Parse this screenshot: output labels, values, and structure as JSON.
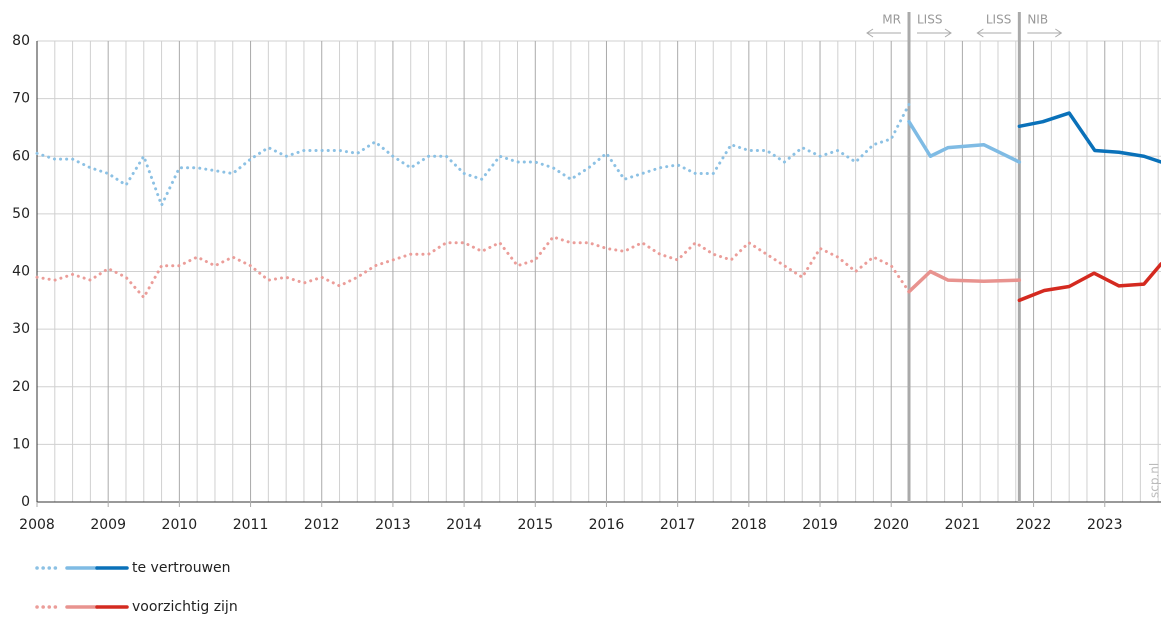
{
  "chart_data": {
    "type": "line",
    "xlim": [
      2008,
      2023.79
    ],
    "xticks": [
      2008,
      2009,
      2010,
      2011,
      2012,
      2013,
      2014,
      2015,
      2016,
      2017,
      2018,
      2019,
      2020,
      2021,
      2022,
      2023
    ],
    "xgrid": [
      2008.25,
      2008.5,
      2008.75,
      2009.25,
      2009.5,
      2009.75,
      2010.25,
      2010.5,
      2010.75,
      2011.25,
      2011.5,
      2011.75,
      2012.25,
      2012.5,
      2012.75,
      2013.25,
      2013.5,
      2013.75,
      2014.25,
      2014.5,
      2014.75,
      2015.25,
      2015.5,
      2015.75,
      2016.25,
      2016.5,
      2016.75,
      2017.25,
      2017.5,
      2017.75,
      2018.25,
      2018.5,
      2018.75,
      2019.25,
      2019.5,
      2019.75,
      2020.25,
      2020.5,
      2020.75,
      2021.25,
      2021.5,
      2021.75,
      2022.25,
      2022.5,
      2022.75,
      2023.25,
      2023.5,
      2023.75
    ],
    "ylim": [
      0,
      80
    ],
    "yticks": [
      0,
      10,
      20,
      30,
      40,
      50,
      60,
      70,
      80
    ],
    "grid": true,
    "series": [
      {
        "name": "te vertrouwen",
        "pieces": [
          {
            "style": "dotted",
            "color": "#8cc1e4",
            "x": [
              2008,
              2008.25,
              2008.5,
              2008.75,
              2009,
              2009.25,
              2009.5,
              2009.75,
              2010,
              2010.25,
              2010.5,
              2010.75,
              2011,
              2011.25,
              2011.5,
              2011.75,
              2012,
              2012.25,
              2012.5,
              2012.75,
              2013,
              2013.25,
              2013.5,
              2013.75,
              2014,
              2014.25,
              2014.5,
              2014.75,
              2015,
              2015.25,
              2015.5,
              2015.75,
              2016,
              2016.25,
              2016.5,
              2016.75,
              2017,
              2017.25,
              2017.5,
              2017.75,
              2018,
              2018.25,
              2018.5,
              2018.75,
              2019,
              2019.25,
              2019.5,
              2019.75,
              2020,
              2020.25
            ],
            "values": [
              60.5,
              59.5,
              59.5,
              58,
              57,
              55,
              60,
              51.5,
              58,
              58,
              57.5,
              57,
              59.5,
              61.5,
              60,
              61,
              61,
              61,
              60.5,
              62.5,
              60,
              58,
              60,
              60,
              57,
              56,
              60,
              59,
              59,
              58,
              56,
              58,
              60.5,
              56,
              57,
              58,
              58.5,
              57,
              57,
              62,
              61,
              61,
              59,
              61.5,
              60,
              61,
              59,
              62,
              63,
              69
            ]
          },
          {
            "style": "solid",
            "color": "#7fbbe4",
            "x": [
              2020.25,
              2020.55,
              2020.8,
              2021.3,
              2021.8
            ],
            "values": [
              66,
              60,
              61.5,
              62,
              59
            ]
          },
          {
            "style": "solid",
            "color": "#0a71b9",
            "x": [
              2021.8,
              2022.13,
              2022.5,
              2022.86,
              2023.2,
              2023.55,
              2023.79
            ],
            "values": [
              65.2,
              66,
              67.5,
              61,
              60.7,
              60,
              59
            ]
          }
        ]
      },
      {
        "name": "voorzichtig zijn",
        "pieces": [
          {
            "style": "dotted",
            "color": "#eb9d99",
            "x": [
              2008,
              2008.25,
              2008.5,
              2008.75,
              2009,
              2009.25,
              2009.5,
              2009.75,
              2010,
              2010.25,
              2010.5,
              2010.75,
              2011,
              2011.25,
              2011.5,
              2011.75,
              2012,
              2012.25,
              2012.5,
              2012.75,
              2013,
              2013.25,
              2013.5,
              2013.75,
              2014,
              2014.25,
              2014.5,
              2014.75,
              2015,
              2015.25,
              2015.5,
              2015.75,
              2016,
              2016.25,
              2016.5,
              2016.75,
              2017,
              2017.25,
              2017.5,
              2017.75,
              2018,
              2018.25,
              2018.5,
              2018.75,
              2019,
              2019.25,
              2019.5,
              2019.75,
              2020,
              2020.25
            ],
            "values": [
              39,
              38.5,
              39.5,
              38.5,
              40.5,
              39,
              35.5,
              41,
              41,
              42.5,
              41,
              42.5,
              41,
              38.5,
              39,
              38,
              39,
              37.5,
              39,
              41,
              42,
              43,
              43,
              45,
              45,
              43.5,
              45,
              41,
              42,
              46,
              45,
              45,
              44,
              43.5,
              45,
              43,
              42,
              45,
              43,
              42,
              45,
              43,
              41,
              39,
              44,
              42.5,
              40,
              42.5,
              41,
              36.5
            ]
          },
          {
            "style": "solid",
            "color": "#e8938f",
            "x": [
              2020.25,
              2020.55,
              2020.8,
              2021.3,
              2021.8
            ],
            "values": [
              36.5,
              40,
              38.5,
              38.3,
              38.5
            ]
          },
          {
            "style": "solid",
            "color": "#d42a20",
            "x": [
              2021.8,
              2022.15,
              2022.5,
              2022.85,
              2023.2,
              2023.55,
              2023.79
            ],
            "values": [
              35,
              36.7,
              37.4,
              39.7,
              37.5,
              37.8,
              41.3
            ]
          }
        ]
      }
    ],
    "annotations": [
      {
        "x": 2020.25,
        "left": "MR",
        "right": "LISS"
      },
      {
        "x": 2021.8,
        "left": "LISS",
        "right": "NIB"
      }
    ],
    "source": "scp.nl"
  }
}
